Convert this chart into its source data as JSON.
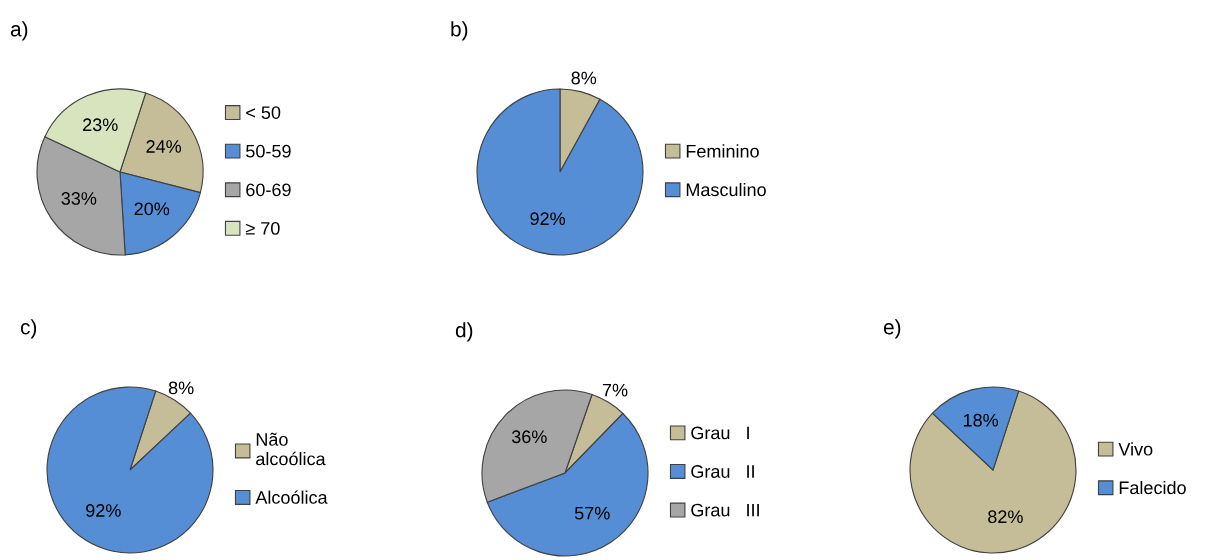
{
  "chart_data": [
    {
      "type": "pie",
      "title": "a)",
      "categories": [
        "< 50",
        "50-59",
        "60-69",
        "≥ 70"
      ],
      "values": [
        24,
        20,
        33,
        23
      ],
      "value_labels": [
        "24%",
        "20%",
        "33%",
        "23%"
      ],
      "colors": [
        "#c4bd97",
        "#558ed5",
        "#a6a6a6",
        "#d7e4bd"
      ],
      "legend": "right"
    },
    {
      "type": "pie",
      "title": "b)",
      "categories": [
        "Feminino",
        "Masculino"
      ],
      "values": [
        8,
        92
      ],
      "value_labels": [
        "8%",
        "92%"
      ],
      "colors": [
        "#c4bd97",
        "#558ed5"
      ],
      "legend": "right"
    },
    {
      "type": "pie",
      "title": "c)",
      "categories": [
        "Não\nalcoólica",
        "Alcoólica"
      ],
      "values": [
        8,
        92
      ],
      "value_labels": [
        "8%",
        "92%"
      ],
      "colors": [
        "#c4bd97",
        "#558ed5"
      ],
      "legend": "right"
    },
    {
      "type": "pie",
      "title": "d)",
      "categories": [
        "Grau   I",
        "Grau   II",
        "Grau   III"
      ],
      "values": [
        7,
        57,
        36
      ],
      "value_labels": [
        "7%",
        "57%",
        "36%"
      ],
      "colors": [
        "#c4bd97",
        "#558ed5",
        "#a6a6a6"
      ],
      "legend": "right"
    },
    {
      "type": "pie",
      "title": "e)",
      "categories": [
        "Vivo",
        "Falecido"
      ],
      "values": [
        82,
        18
      ],
      "value_labels": [
        "82%",
        "18%"
      ],
      "colors": [
        "#c4bd97",
        "#558ed5"
      ],
      "legend": "right"
    }
  ]
}
